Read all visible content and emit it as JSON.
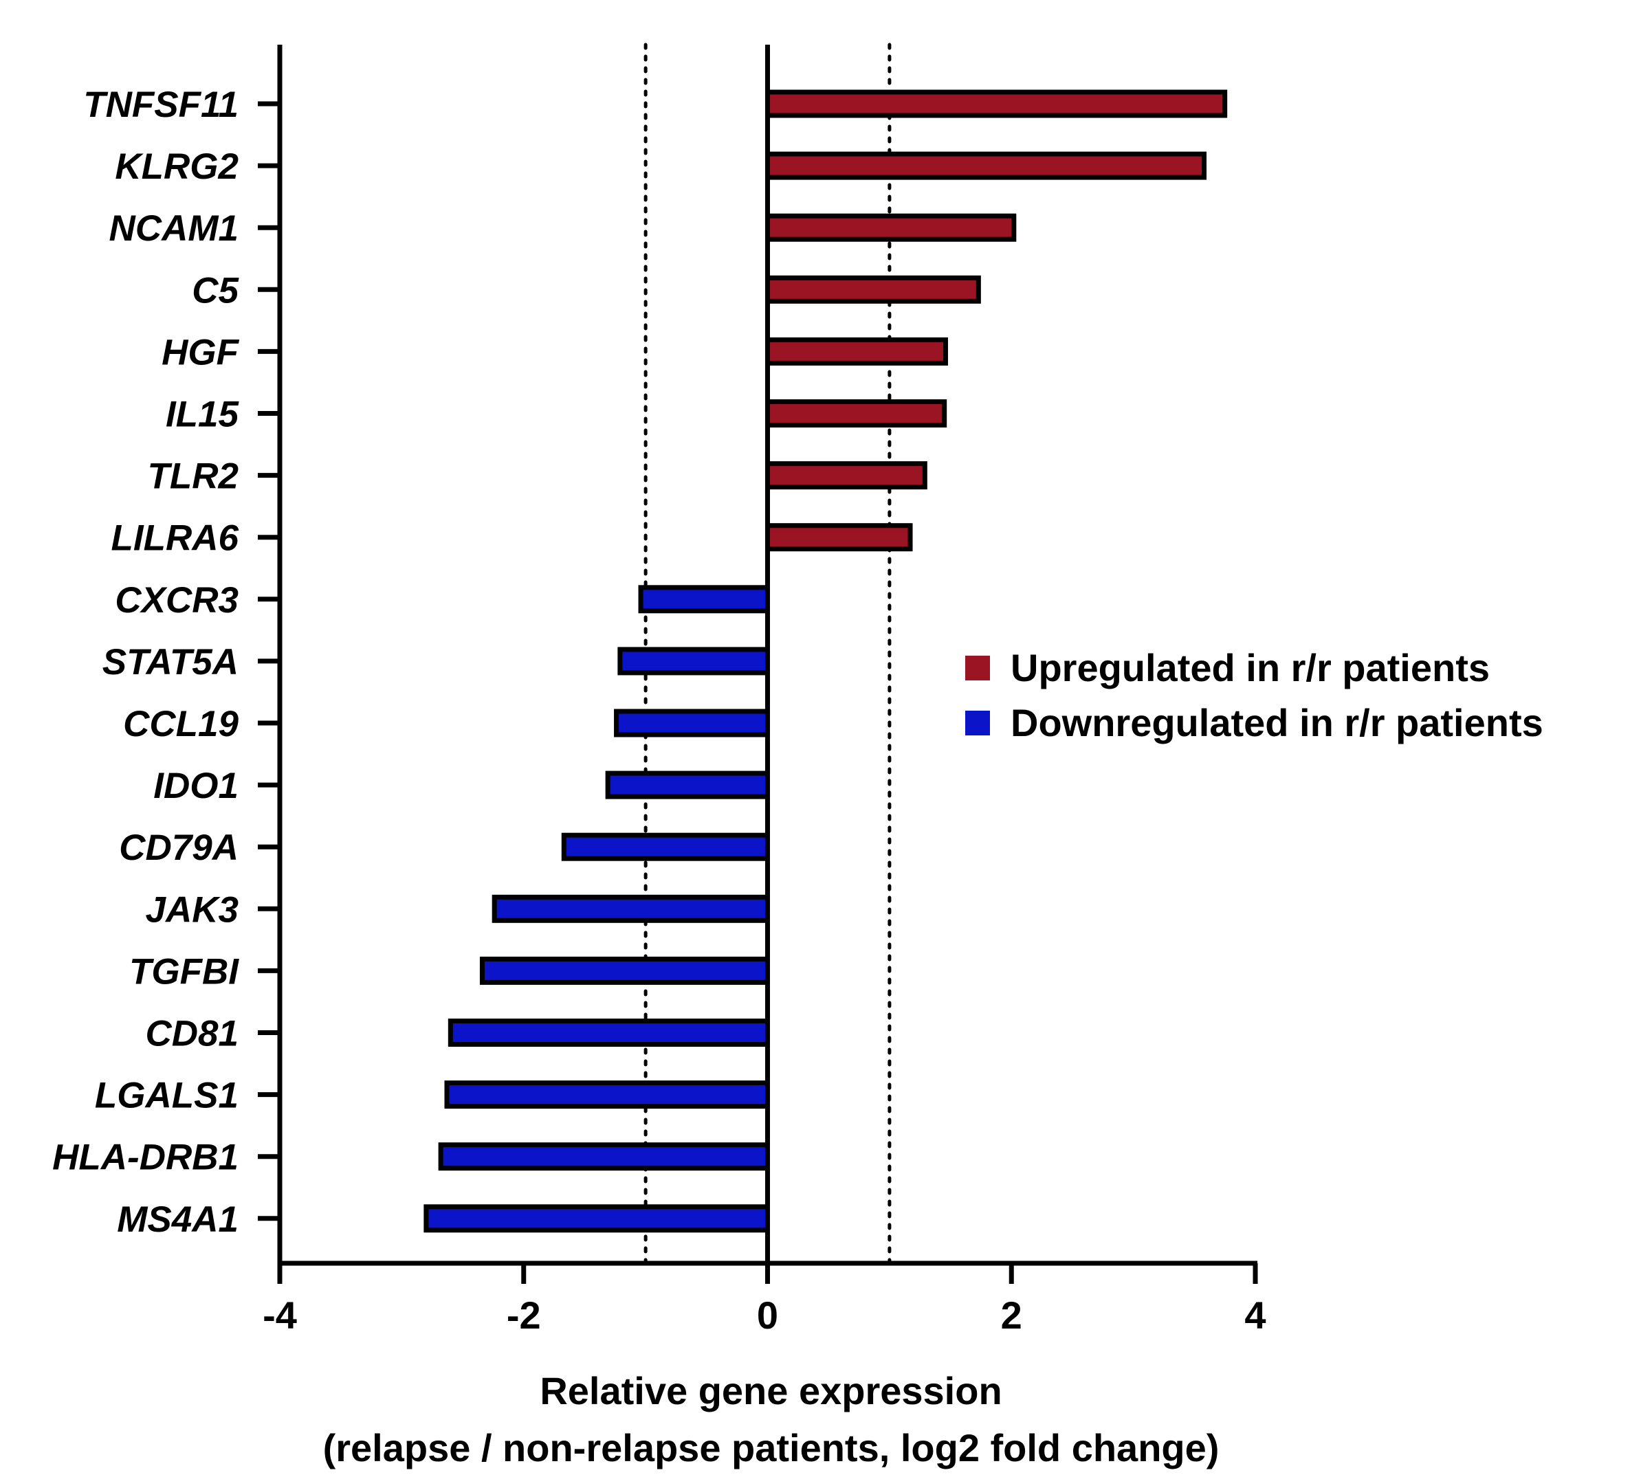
{
  "chart_data": {
    "type": "bar",
    "orientation": "horizontal",
    "categories": [
      "TNFSF11",
      "KLRG2",
      "NCAM1",
      "C5",
      "HGF",
      "IL15",
      "TLR2",
      "LILRA6",
      "CXCR3",
      "STAT5A",
      "CCL19",
      "IDO1",
      "CD79A",
      "JAK3",
      "TGFBI",
      "CD81",
      "LGALS1",
      "HLA-DRB1",
      "MS4A1"
    ],
    "values": [
      3.75,
      3.58,
      2.02,
      1.73,
      1.46,
      1.45,
      1.29,
      1.17,
      -1.04,
      -1.21,
      -1.24,
      -1.31,
      -1.67,
      -2.24,
      -2.34,
      -2.6,
      -2.63,
      -2.68,
      -2.8
    ],
    "series": [
      {
        "name": "Upregulated in r/r patients",
        "color": "#9b1423"
      },
      {
        "name": "Downregulated in r/r patients",
        "color": "#0c14c9"
      }
    ],
    "xlim": [
      -4,
      4
    ],
    "xticks": [
      -4,
      -2,
      0,
      2,
      4
    ],
    "threshold_lines": [
      -1,
      1
    ],
    "xlabel": "Relative gene expression",
    "xlabel_sub": "(relapse / non-relapse patients, log2 fold change)",
    "title": "",
    "grid": false,
    "legend_position": "right"
  }
}
